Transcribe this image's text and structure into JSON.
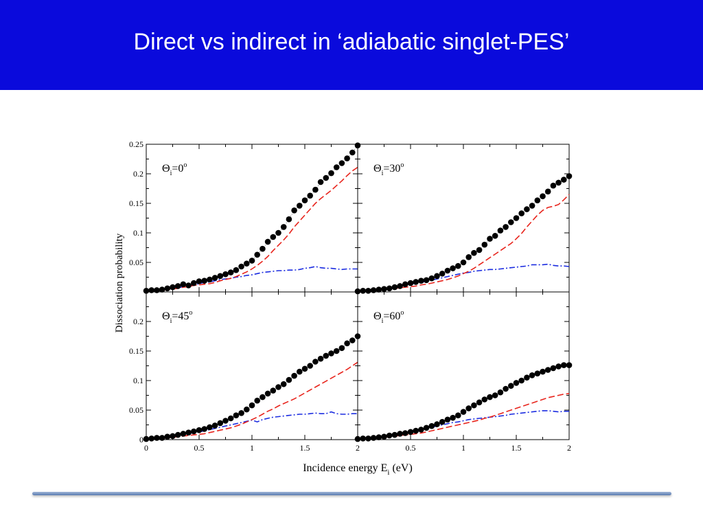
{
  "slide": {
    "title": "Direct vs indirect in ‘adiabatic singlet-PES’"
  },
  "chart_data": {
    "type": "scatter",
    "ylabel": "Dissociation probability",
    "xlabel_main": "Incidence energy E",
    "xlabel_sub": "i",
    "xlabel_unit": " (eV)",
    "xlim": [
      0,
      2
    ],
    "x_ticks": [
      {
        "v": 0,
        "label": "0"
      },
      {
        "v": 0.5,
        "label": "0.5"
      },
      {
        "v": 1,
        "label": "1"
      },
      {
        "v": 1.5,
        "label": "1.5"
      },
      {
        "v": 2,
        "label": "2"
      }
    ],
    "y_ticks_top": [
      {
        "v": 0.05,
        "label": "0.05"
      },
      {
        "v": 0.1,
        "label": "0.1"
      },
      {
        "v": 0.15,
        "label": "0.15"
      },
      {
        "v": 0.2,
        "label": "0.2"
      },
      {
        "v": 0.25,
        "label": "0.25"
      }
    ],
    "y_ticks_bottom": [
      {
        "v": 0,
        "label": "0"
      },
      {
        "v": 0.05,
        "label": "0.05"
      },
      {
        "v": 0.1,
        "label": "0.1"
      },
      {
        "v": 0.15,
        "label": "0.15"
      },
      {
        "v": 0.2,
        "label": "0.2"
      }
    ],
    "panels": [
      {
        "label_main": "Θ",
        "label_sub": "i",
        "label_eq": "=0",
        "label_sup": "o",
        "ylim": [
          0,
          0.25
        ],
        "x": [
          0,
          0.05,
          0.1,
          0.15,
          0.2,
          0.25,
          0.3,
          0.35,
          0.4,
          0.45,
          0.5,
          0.55,
          0.6,
          0.65,
          0.7,
          0.75,
          0.8,
          0.85,
          0.9,
          0.95,
          1,
          1.05,
          1.1,
          1.15,
          1.2,
          1.25,
          1.3,
          1.35,
          1.4,
          1.45,
          1.5,
          1.55,
          1.6,
          1.65,
          1.7,
          1.75,
          1.8,
          1.85,
          1.9,
          1.95,
          2
        ],
        "total": [
          0.002,
          0.003,
          0.003,
          0.004,
          0.006,
          0.008,
          0.01,
          0.013,
          0.011,
          0.015,
          0.018,
          0.019,
          0.021,
          0.024,
          0.027,
          0.03,
          0.033,
          0.037,
          0.043,
          0.048,
          0.053,
          0.063,
          0.073,
          0.085,
          0.093,
          0.1,
          0.11,
          0.123,
          0.138,
          0.146,
          0.155,
          0.163,
          0.173,
          0.186,
          0.193,
          0.201,
          0.211,
          0.218,
          0.226,
          0.236,
          0.248
        ],
        "red": [
          0.001,
          0.002,
          0.002,
          0.003,
          0.004,
          0.005,
          0.006,
          0.008,
          0.009,
          0.011,
          0.012,
          0.013,
          0.014,
          0.016,
          0.019,
          0.021,
          0.023,
          0.026,
          0.03,
          0.034,
          0.039,
          0.045,
          0.052,
          0.06,
          0.07,
          0.079,
          0.088,
          0.098,
          0.11,
          0.12,
          0.13,
          0.14,
          0.15,
          0.158,
          0.165,
          0.172,
          0.18,
          0.188,
          0.197,
          0.205,
          0.211
        ],
        "blue": [
          0.001,
          0.002,
          0.003,
          0.004,
          0.005,
          0.006,
          0.007,
          0.009,
          0.01,
          0.012,
          0.014,
          0.016,
          0.017,
          0.019,
          0.021,
          0.022,
          0.023,
          0.025,
          0.026,
          0.028,
          0.029,
          0.031,
          0.033,
          0.034,
          0.035,
          0.036,
          0.036,
          0.037,
          0.037,
          0.038,
          0.04,
          0.041,
          0.043,
          0.041,
          0.04,
          0.04,
          0.039,
          0.038,
          0.039,
          0.039,
          0.039
        ]
      },
      {
        "label_main": "Θ",
        "label_sub": "i",
        "label_eq": "=30",
        "label_sup": "o",
        "ylim": [
          0,
          0.25
        ],
        "x": [
          0,
          0.05,
          0.1,
          0.15,
          0.2,
          0.25,
          0.3,
          0.35,
          0.4,
          0.45,
          0.5,
          0.55,
          0.6,
          0.65,
          0.7,
          0.75,
          0.8,
          0.85,
          0.9,
          0.95,
          1,
          1.05,
          1.1,
          1.15,
          1.2,
          1.25,
          1.3,
          1.35,
          1.4,
          1.45,
          1.5,
          1.55,
          1.6,
          1.65,
          1.7,
          1.75,
          1.8,
          1.85,
          1.9,
          1.95,
          2
        ],
        "total": [
          0.001,
          0.002,
          0.002,
          0.003,
          0.004,
          0.005,
          0.006,
          0.008,
          0.01,
          0.013,
          0.015,
          0.017,
          0.019,
          0.02,
          0.023,
          0.027,
          0.031,
          0.036,
          0.04,
          0.044,
          0.05,
          0.059,
          0.066,
          0.071,
          0.08,
          0.09,
          0.095,
          0.104,
          0.11,
          0.118,
          0.125,
          0.133,
          0.14,
          0.146,
          0.155,
          0.162,
          0.17,
          0.18,
          0.185,
          0.19,
          0.196
        ],
        "red": [
          0.001,
          0.001,
          0.002,
          0.002,
          0.003,
          0.004,
          0.005,
          0.006,
          0.007,
          0.008,
          0.009,
          0.01,
          0.012,
          0.013,
          0.015,
          0.017,
          0.019,
          0.021,
          0.024,
          0.027,
          0.031,
          0.035,
          0.04,
          0.046,
          0.052,
          0.058,
          0.064,
          0.07,
          0.076,
          0.082,
          0.09,
          0.099,
          0.11,
          0.12,
          0.13,
          0.138,
          0.143,
          0.145,
          0.148,
          0.156,
          0.165
        ],
        "blue": [
          0.001,
          0.002,
          0.003,
          0.004,
          0.005,
          0.006,
          0.007,
          0.008,
          0.01,
          0.011,
          0.013,
          0.015,
          0.016,
          0.018,
          0.02,
          0.022,
          0.024,
          0.026,
          0.028,
          0.03,
          0.032,
          0.033,
          0.035,
          0.036,
          0.037,
          0.038,
          0.038,
          0.039,
          0.04,
          0.041,
          0.042,
          0.043,
          0.044,
          0.046,
          0.046,
          0.046,
          0.047,
          0.045,
          0.044,
          0.044,
          0.043
        ]
      },
      {
        "label_main": "Θ",
        "label_sub": "i",
        "label_eq": "=45",
        "label_sup": "o",
        "ylim": [
          0,
          0.25
        ],
        "x": [
          0,
          0.05,
          0.1,
          0.15,
          0.2,
          0.25,
          0.3,
          0.35,
          0.4,
          0.45,
          0.5,
          0.55,
          0.6,
          0.65,
          0.7,
          0.75,
          0.8,
          0.85,
          0.9,
          0.95,
          1,
          1.05,
          1.1,
          1.15,
          1.2,
          1.25,
          1.3,
          1.35,
          1.4,
          1.45,
          1.5,
          1.55,
          1.6,
          1.65,
          1.7,
          1.75,
          1.8,
          1.85,
          1.9,
          1.95,
          2
        ],
        "total": [
          0.001,
          0.002,
          0.003,
          0.003,
          0.005,
          0.006,
          0.008,
          0.01,
          0.012,
          0.014,
          0.016,
          0.018,
          0.021,
          0.024,
          0.028,
          0.032,
          0.036,
          0.041,
          0.045,
          0.051,
          0.058,
          0.066,
          0.072,
          0.078,
          0.083,
          0.089,
          0.094,
          0.101,
          0.108,
          0.115,
          0.12,
          0.125,
          0.132,
          0.137,
          0.142,
          0.146,
          0.15,
          0.155,
          0.163,
          0.168,
          0.175
        ],
        "red": [
          0.001,
          0.001,
          0.002,
          0.002,
          0.003,
          0.004,
          0.005,
          0.006,
          0.007,
          0.008,
          0.009,
          0.01,
          0.012,
          0.014,
          0.016,
          0.018,
          0.02,
          0.023,
          0.026,
          0.03,
          0.034,
          0.038,
          0.043,
          0.048,
          0.052,
          0.057,
          0.061,
          0.065,
          0.069,
          0.074,
          0.079,
          0.084,
          0.089,
          0.094,
          0.099,
          0.104,
          0.109,
          0.114,
          0.119,
          0.125,
          0.131
        ],
        "blue": [
          0.001,
          0.002,
          0.003,
          0.004,
          0.005,
          0.006,
          0.007,
          0.009,
          0.01,
          0.012,
          0.013,
          0.015,
          0.017,
          0.019,
          0.021,
          0.023,
          0.025,
          0.027,
          0.029,
          0.031,
          0.033,
          0.03,
          0.034,
          0.036,
          0.038,
          0.039,
          0.04,
          0.041,
          0.042,
          0.043,
          0.043,
          0.044,
          0.045,
          0.044,
          0.044,
          0.047,
          0.044,
          0.043,
          0.043,
          0.044,
          0.044
        ]
      },
      {
        "label_main": "Θ",
        "label_sub": "i",
        "label_eq": "=60",
        "label_sup": "o",
        "ylim": [
          0,
          0.25
        ],
        "x": [
          0,
          0.05,
          0.1,
          0.15,
          0.2,
          0.25,
          0.3,
          0.35,
          0.4,
          0.45,
          0.5,
          0.55,
          0.6,
          0.65,
          0.7,
          0.75,
          0.8,
          0.85,
          0.9,
          0.95,
          1,
          1.05,
          1.1,
          1.15,
          1.2,
          1.25,
          1.3,
          1.35,
          1.4,
          1.45,
          1.5,
          1.55,
          1.6,
          1.65,
          1.7,
          1.75,
          1.8,
          1.85,
          1.9,
          1.95,
          2
        ],
        "total": [
          0.001,
          0.002,
          0.002,
          0.003,
          0.004,
          0.005,
          0.007,
          0.008,
          0.01,
          0.011,
          0.013,
          0.015,
          0.017,
          0.02,
          0.023,
          0.026,
          0.03,
          0.034,
          0.037,
          0.041,
          0.047,
          0.053,
          0.058,
          0.063,
          0.068,
          0.072,
          0.075,
          0.08,
          0.086,
          0.091,
          0.096,
          0.1,
          0.105,
          0.109,
          0.112,
          0.115,
          0.118,
          0.121,
          0.124,
          0.126,
          0.126
        ],
        "red": [
          0.001,
          0.001,
          0.002,
          0.002,
          0.003,
          0.004,
          0.005,
          0.006,
          0.007,
          0.008,
          0.009,
          0.01,
          0.011,
          0.013,
          0.015,
          0.017,
          0.019,
          0.021,
          0.023,
          0.025,
          0.027,
          0.029,
          0.031,
          0.033,
          0.036,
          0.038,
          0.041,
          0.044,
          0.047,
          0.05,
          0.053,
          0.056,
          0.059,
          0.062,
          0.065,
          0.068,
          0.071,
          0.073,
          0.075,
          0.077,
          0.078
        ],
        "blue": [
          0.001,
          0.002,
          0.003,
          0.004,
          0.005,
          0.006,
          0.007,
          0.008,
          0.01,
          0.011,
          0.013,
          0.015,
          0.017,
          0.019,
          0.021,
          0.023,
          0.025,
          0.027,
          0.029,
          0.03,
          0.032,
          0.034,
          0.035,
          0.036,
          0.037,
          0.038,
          0.039,
          0.04,
          0.041,
          0.043,
          0.044,
          0.045,
          0.046,
          0.047,
          0.048,
          0.049,
          0.049,
          0.048,
          0.047,
          0.048,
          0.048
        ]
      }
    ],
    "colors": {
      "total": "#000000",
      "red": "#e8241c",
      "blue": "#1a2be0",
      "title_bar": "#0a0adc"
    }
  }
}
